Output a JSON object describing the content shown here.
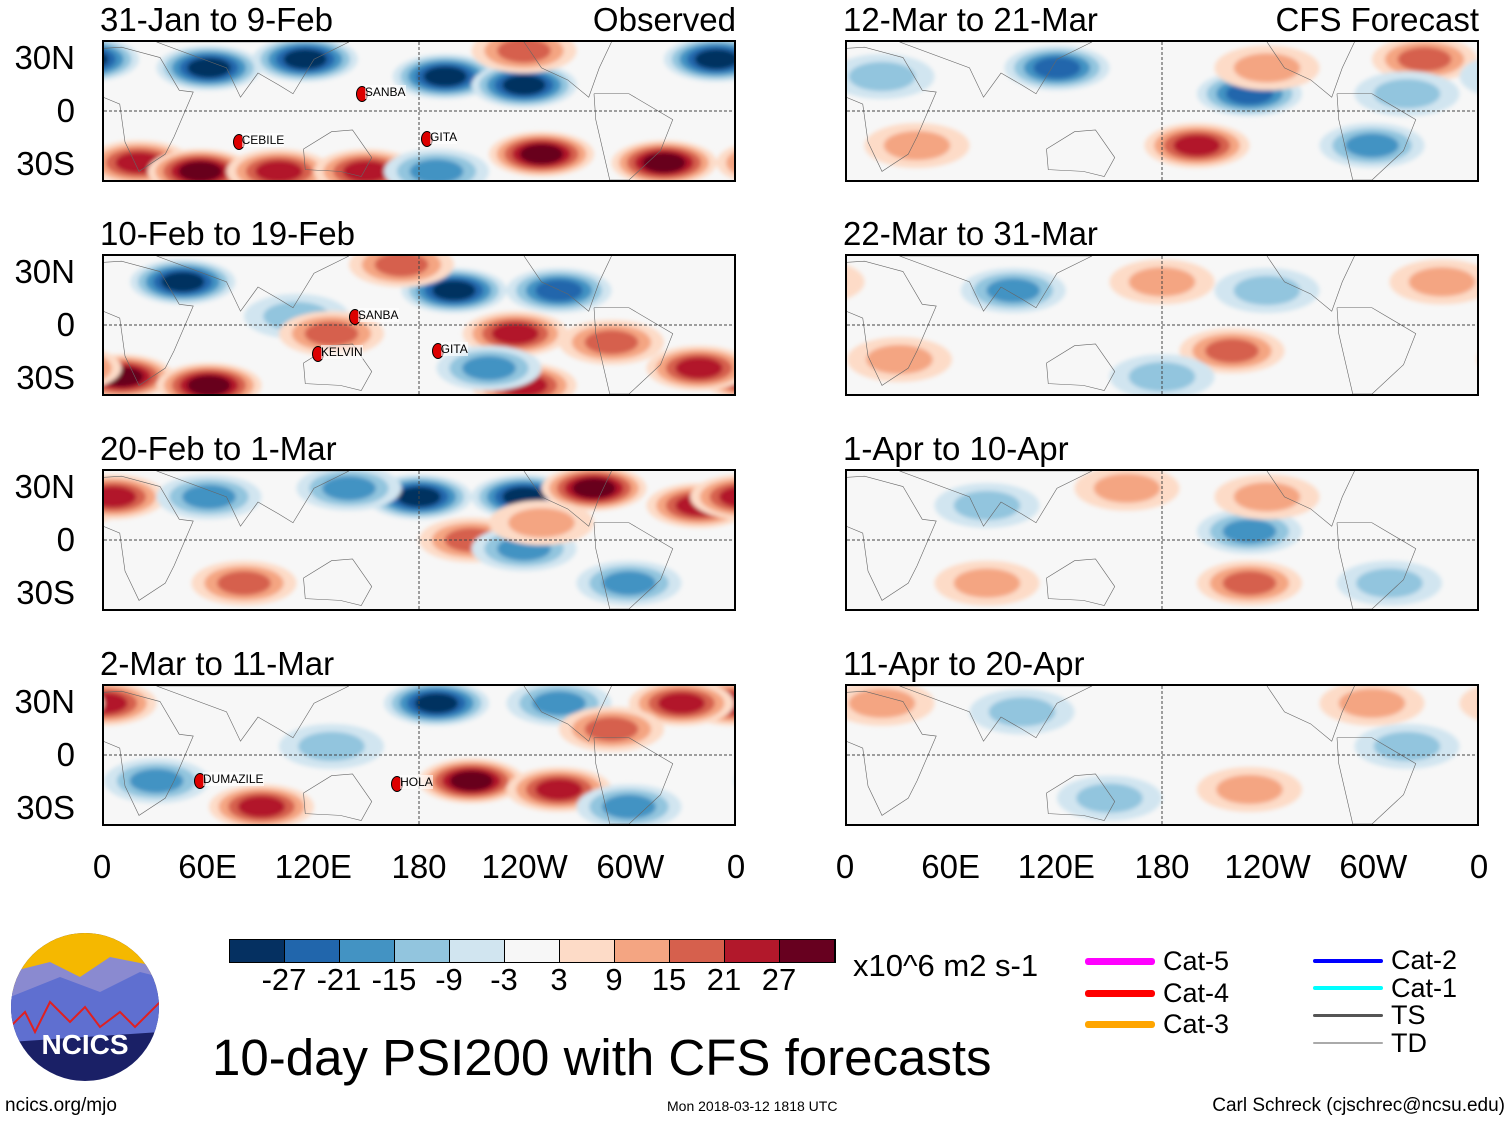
{
  "title": "10-day PSI200 with CFS forecasts",
  "observed_label": "Observed",
  "forecast_label": "CFS Forecast",
  "units": "x10^6 m2 s-1",
  "footer": {
    "left": "ncics.org/mjo",
    "center": "Mon 2018-03-12 1818 UTC",
    "right": "Carl Schreck (cjschrec@ncsu.edu)"
  },
  "logo_text": "NCICS",
  "lat_labels": [
    "30N",
    "0",
    "30S"
  ],
  "lon_labels": [
    "0",
    "60E",
    "120E",
    "180",
    "120W",
    "60W",
    "0"
  ],
  "colorbar": {
    "colors": [
      "#053061",
      "#2166ac",
      "#4393c3",
      "#92c5de",
      "#d1e5f0",
      "#f7f7f7",
      "#fddbc7",
      "#f4a582",
      "#d6604d",
      "#b2182b",
      "#67001f"
    ],
    "labels": [
      "-27",
      "-21",
      "-15",
      "-9",
      "-3",
      "3",
      "9",
      "15",
      "21",
      "27"
    ]
  },
  "legend": [
    {
      "label": "Cat-5",
      "color": "#ff00ff"
    },
    {
      "label": "Cat-4",
      "color": "#ff0000"
    },
    {
      "label": "Cat-3",
      "color": "#ffa500"
    },
    {
      "label": "Cat-2",
      "color": "#0000ff"
    },
    {
      "label": "Cat-1",
      "color": "#00ffff"
    },
    {
      "label": "TS",
      "color": "#555555"
    },
    {
      "label": "TD",
      "color": "#aaaaaa"
    }
  ],
  "panels": [
    {
      "title": "31-Jan to 9-Feb",
      "storms": [
        {
          "name": "SANBA",
          "lon": 147,
          "lat": 10
        },
        {
          "name": "CEBILE",
          "lon": 77,
          "lat": -17
        },
        {
          "name": "GITA",
          "lon": 184,
          "lat": -15
        }
      ],
      "anomalies": [
        [
          60,
          25,
          -30
        ],
        [
          115,
          30,
          -30
        ],
        [
          195,
          20,
          -27
        ],
        [
          240,
          15,
          -27
        ],
        [
          350,
          30,
          -27
        ],
        [
          20,
          -30,
          25
        ],
        [
          55,
          -35,
          30
        ],
        [
          100,
          -35,
          21
        ],
        [
          250,
          -25,
          30
        ],
        [
          320,
          -30,
          30
        ],
        [
          150,
          -35,
          21
        ],
        [
          190,
          -35,
          -15
        ],
        [
          240,
          35,
          15
        ]
      ]
    },
    {
      "title": "10-Feb to 19-Feb",
      "storms": [
        {
          "name": "SANBA",
          "lon": 143,
          "lat": 5
        },
        {
          "name": "KELVIN",
          "lon": 122,
          "lat": -16
        },
        {
          "name": "GITA",
          "lon": 190,
          "lat": -14
        }
      ],
      "anomalies": [
        [
          45,
          25,
          -30
        ],
        [
          200,
          20,
          -27
        ],
        [
          260,
          20,
          -21
        ],
        [
          170,
          35,
          15
        ],
        [
          235,
          -5,
          21
        ],
        [
          290,
          -10,
          15
        ],
        [
          10,
          -30,
          27
        ],
        [
          60,
          -35,
          27
        ],
        [
          240,
          -35,
          21
        ],
        [
          340,
          -25,
          21
        ],
        [
          220,
          -25,
          -15
        ],
        [
          110,
          5,
          -9
        ],
        [
          130,
          -5,
          15
        ]
      ]
    },
    {
      "title": "20-Feb to 1-Mar",
      "storms": [],
      "anomalies": [
        [
          180,
          25,
          -30
        ],
        [
          240,
          25,
          -27
        ],
        [
          280,
          30,
          30
        ],
        [
          340,
          20,
          21
        ],
        [
          5,
          25,
          21
        ],
        [
          60,
          25,
          -15
        ],
        [
          140,
          30,
          -15
        ],
        [
          210,
          0,
          15
        ],
        [
          240,
          -5,
          -15
        ],
        [
          80,
          -25,
          15
        ],
        [
          300,
          -25,
          -15
        ],
        [
          250,
          10,
          9
        ]
      ]
    },
    {
      "title": "2-Mar to 11-Mar",
      "storms": [
        {
          "name": "DUMAZILE",
          "lon": 55,
          "lat": -14
        },
        {
          "name": "HOLA",
          "lon": 167,
          "lat": -16
        }
      ],
      "anomalies": [
        [
          190,
          30,
          -30
        ],
        [
          260,
          30,
          -15
        ],
        [
          0,
          30,
          21
        ],
        [
          330,
          30,
          21
        ],
        [
          290,
          15,
          15
        ],
        [
          210,
          -15,
          27
        ],
        [
          260,
          -20,
          21
        ],
        [
          90,
          -30,
          21
        ],
        [
          30,
          -15,
          -15
        ],
        [
          300,
          -30,
          -15
        ],
        [
          130,
          5,
          -9
        ]
      ]
    },
    {
      "title": "12-Mar to 21-Mar",
      "storms": [],
      "anomalies": [
        [
          120,
          25,
          -21
        ],
        [
          230,
          10,
          -21
        ],
        [
          200,
          -20,
          21
        ],
        [
          330,
          30,
          15
        ],
        [
          20,
          20,
          -9
        ],
        [
          320,
          10,
          -9
        ],
        [
          40,
          -20,
          9
        ],
        [
          300,
          -20,
          -15
        ],
        [
          240,
          25,
          9
        ]
      ]
    },
    {
      "title": "22-Mar to 31-Mar",
      "storms": [],
      "anomalies": [
        [
          95,
          20,
          -15
        ],
        [
          220,
          -15,
          15
        ],
        [
          180,
          25,
          9
        ],
        [
          240,
          20,
          -9
        ],
        [
          30,
          -20,
          9
        ],
        [
          180,
          -30,
          -9
        ],
        [
          340,
          25,
          9
        ]
      ]
    },
    {
      "title": "1-Apr to 10-Apr",
      "storms": [],
      "anomalies": [
        [
          230,
          5,
          -15
        ],
        [
          160,
          30,
          9
        ],
        [
          240,
          25,
          9
        ],
        [
          80,
          20,
          -9
        ],
        [
          230,
          -25,
          15
        ],
        [
          310,
          -25,
          -9
        ],
        [
          80,
          -25,
          9
        ]
      ]
    },
    {
      "title": "11-Apr to 20-Apr",
      "storms": [],
      "anomalies": [
        [
          230,
          -20,
          9
        ],
        [
          20,
          30,
          9
        ],
        [
          320,
          5,
          -9
        ],
        [
          100,
          25,
          -9
        ],
        [
          300,
          30,
          9
        ],
        [
          150,
          -25,
          -9
        ]
      ]
    }
  ]
}
